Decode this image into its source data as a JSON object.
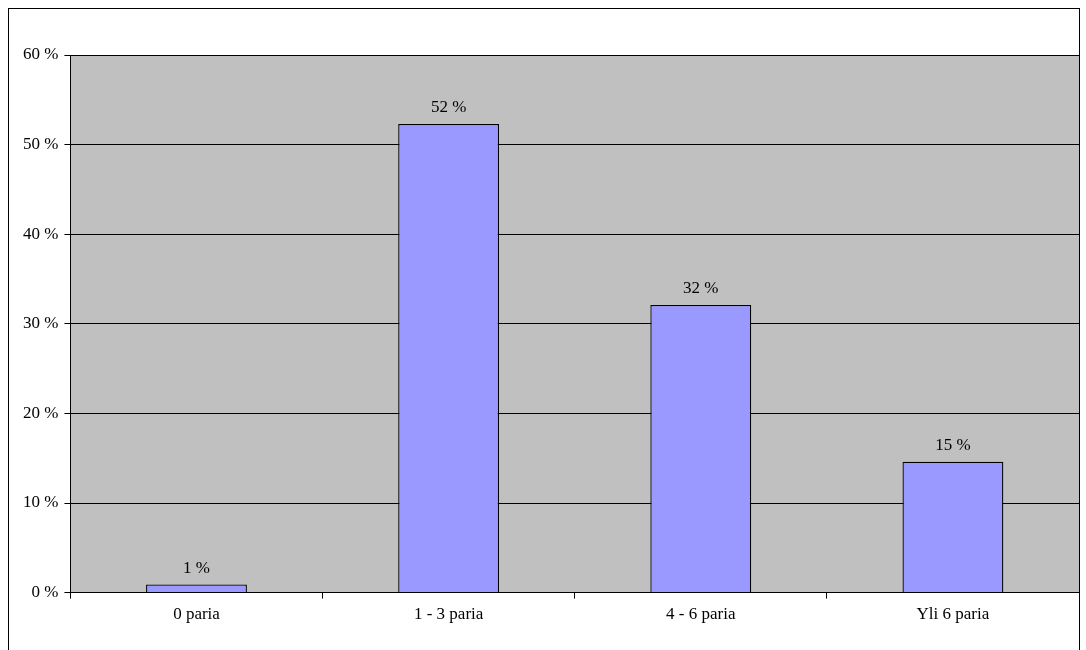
{
  "chart_data": {
    "type": "bar",
    "categories": [
      "0 paria",
      "1 - 3 paria",
      "4 - 6 paria",
      "Yli 6 paria"
    ],
    "values": [
      0.9,
      52.3,
      32.1,
      14.6
    ],
    "value_labels": [
      "1 %",
      "52 %",
      "32 %",
      "15 %"
    ],
    "color": "#9999ff",
    "ylim": [
      0,
      60
    ],
    "yticks": [
      {
        "value": 0,
        "label": "0 %"
      },
      {
        "value": 10,
        "label": "10 %"
      },
      {
        "value": 20,
        "label": "20 %"
      },
      {
        "value": 30,
        "label": "30 %"
      },
      {
        "value": 40,
        "label": "40 %"
      },
      {
        "value": 50,
        "label": "50 %"
      },
      {
        "value": 60,
        "label": "60 %"
      }
    ],
    "grid": "y",
    "legend": false
  }
}
